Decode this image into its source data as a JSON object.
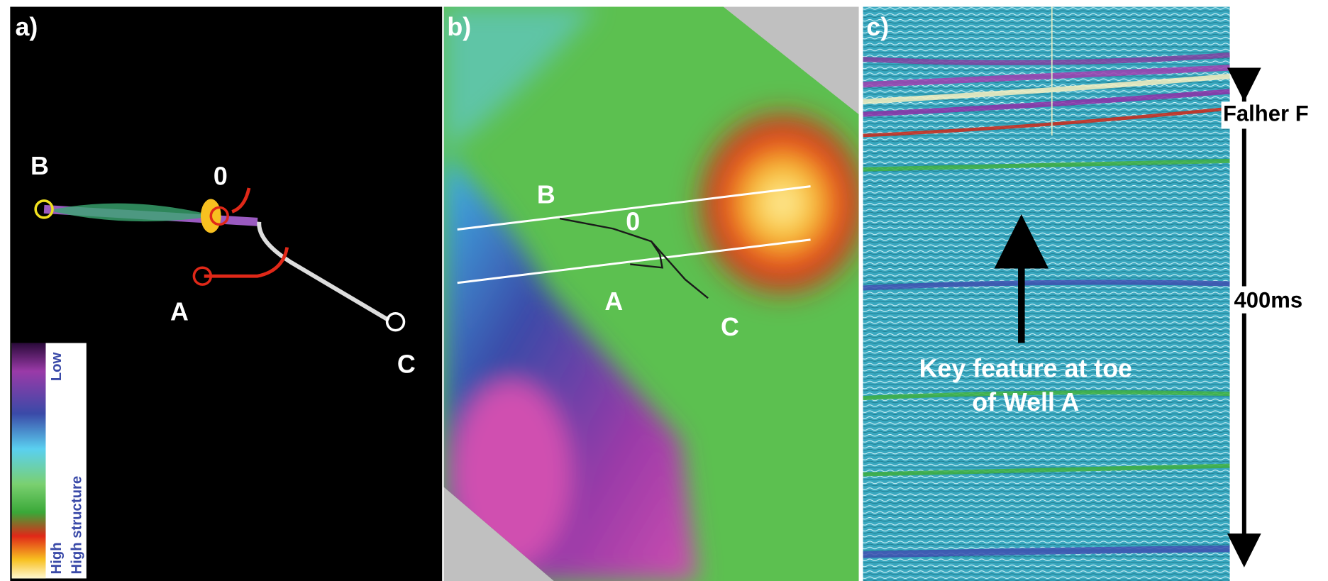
{
  "panel_a": {
    "label": "a)",
    "wells": {
      "b": "B",
      "zero": "0",
      "a": "A",
      "c": "C"
    },
    "legend": {
      "low": "Low",
      "high": "High",
      "high_structure": "High structure"
    }
  },
  "panel_b": {
    "label": "b)",
    "wells": {
      "b": "B",
      "zero": "0",
      "a": "A",
      "c": "C"
    }
  },
  "panel_c": {
    "label": "c)",
    "horizon": "Falher F",
    "interval": "400ms",
    "annotation": [
      "Key feature at toe",
      "of Well A"
    ]
  }
}
